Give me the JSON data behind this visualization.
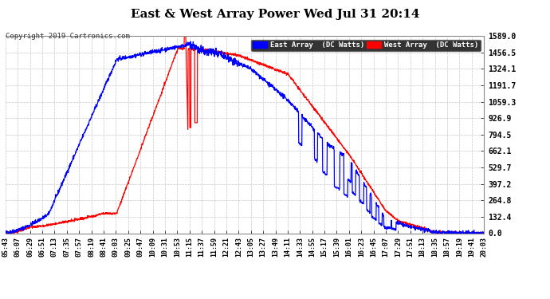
{
  "title": "East & West Array Power Wed Jul 31 20:14",
  "copyright": "Copyright 2019 Cartronics.com",
  "east_label": "East Array  (DC Watts)",
  "west_label": "West Array  (DC Watts)",
  "east_color": "#0000ff",
  "west_color": "#ff0000",
  "background_color": "#ffffff",
  "grid_color": "#c8c8c8",
  "yticks": [
    0.0,
    132.4,
    264.8,
    397.2,
    529.7,
    662.1,
    794.5,
    926.9,
    1059.3,
    1191.7,
    1324.1,
    1456.5,
    1589.0
  ],
  "ymax": 1589.0,
  "total_minutes": 860.0,
  "start_hhmm": "05:43",
  "xtick_labels": [
    "05:43",
    "06:07",
    "06:29",
    "06:51",
    "07:13",
    "07:35",
    "07:57",
    "08:19",
    "08:41",
    "09:03",
    "09:25",
    "09:47",
    "10:09",
    "10:31",
    "10:53",
    "11:15",
    "11:37",
    "11:59",
    "12:21",
    "12:43",
    "13:05",
    "13:27",
    "13:49",
    "14:11",
    "14:33",
    "14:55",
    "15:17",
    "15:39",
    "16:01",
    "16:23",
    "16:45",
    "17:07",
    "17:29",
    "17:51",
    "18:13",
    "18:35",
    "18:57",
    "19:19",
    "19:41",
    "20:03"
  ]
}
